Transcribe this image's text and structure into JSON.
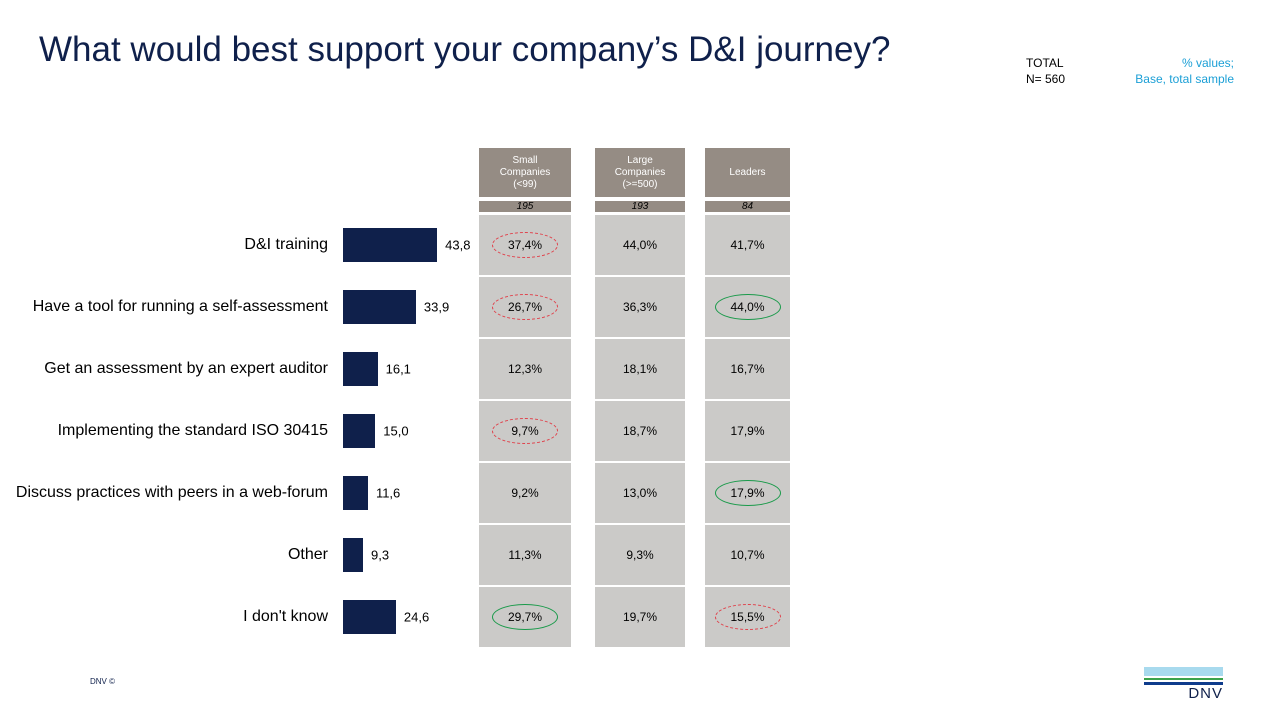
{
  "title": "What would best support your company’s D&I journey?",
  "total": {
    "label": "TOTAL",
    "n": "N= 560"
  },
  "note": {
    "line1": "% values;",
    "line2": "Base, total sample"
  },
  "footer": "DNV ©",
  "logo_text": "DNV",
  "colors": {
    "bar": "#0f204b",
    "header": "#958c84",
    "cell": "#cbcac8",
    "low_ring": "#e0404a",
    "high_ring": "#1a9a4a",
    "accent": "#1b9fd6"
  },
  "chart_data": {
    "type": "bar",
    "orientation": "horizontal",
    "categories": [
      "D&I training",
      "Have a tool for running  a self-assessment",
      "Get an assessment by an expert auditor",
      "Implementing  the standard ISO 30415",
      "Discuss practices with peers in a web-forum",
      "Other",
      "I don't know"
    ],
    "values": [
      43.8,
      33.9,
      16.1,
      15.0,
      11.6,
      9.3,
      24.6
    ],
    "value_labels": [
      "43,8",
      "33,9",
      "16,1",
      "15,0",
      "11,6",
      "9,3",
      "24,6"
    ]
  },
  "table": {
    "columns": [
      {
        "header": [
          "Small",
          "Companies",
          "(<99)"
        ],
        "n": "195",
        "cells": [
          "37,4%",
          "26,7%",
          "12,3%",
          "9,7%",
          "9,2%",
          "11,3%",
          "29,7%"
        ],
        "marks": [
          "low",
          "low",
          "",
          "low",
          "",
          "",
          "high"
        ]
      },
      {
        "header": [
          "Large",
          "Companies",
          "(>=500)"
        ],
        "n": "193",
        "cells": [
          "44,0%",
          "36,3%",
          "18,1%",
          "18,7%",
          "13,0%",
          "9,3%",
          "19,7%"
        ],
        "marks": [
          "",
          "",
          "",
          "",
          "",
          "",
          ""
        ]
      },
      {
        "header": [
          "Leaders"
        ],
        "n": "84",
        "cells": [
          "41,7%",
          "44,0%",
          "16,7%",
          "17,9%",
          "17,9%",
          "10,7%",
          "15,5%"
        ],
        "marks": [
          "",
          "high",
          "",
          "",
          "high",
          "",
          "low"
        ]
      }
    ]
  }
}
